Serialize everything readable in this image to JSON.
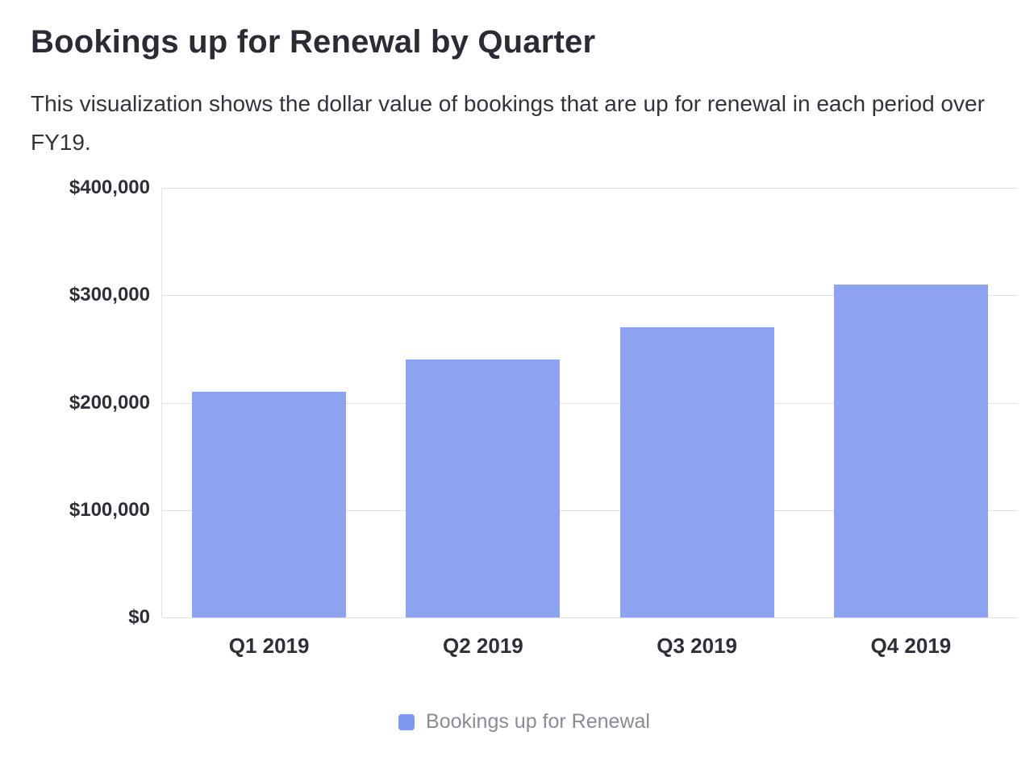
{
  "page": {
    "title": "Bookings up for Renewal by Quarter",
    "subtitle": "This visualization shows the dollar value of bookings that are up for renewal in each period over FY19."
  },
  "chart_data": {
    "type": "bar",
    "title": "Bookings up for Renewal by Quarter",
    "categories": [
      "Q1 2019",
      "Q2 2019",
      "Q3 2019",
      "Q4 2019"
    ],
    "values": [
      210000,
      240000,
      270000,
      310000
    ],
    "series_name": "Bookings up for Renewal",
    "xlabel": "",
    "ylabel": "",
    "ylim": [
      0,
      400000
    ],
    "yticks": [
      0,
      100000,
      200000,
      300000,
      400000
    ],
    "ytick_labels": [
      "$0",
      "$100,000",
      "$200,000",
      "$300,000",
      "$400,000"
    ],
    "grid": true,
    "legend_position": "bottom",
    "bar_color": "#8DA3F0"
  },
  "legend": {
    "label": "Bookings up for Renewal",
    "swatch_color": "#7E99F0"
  }
}
